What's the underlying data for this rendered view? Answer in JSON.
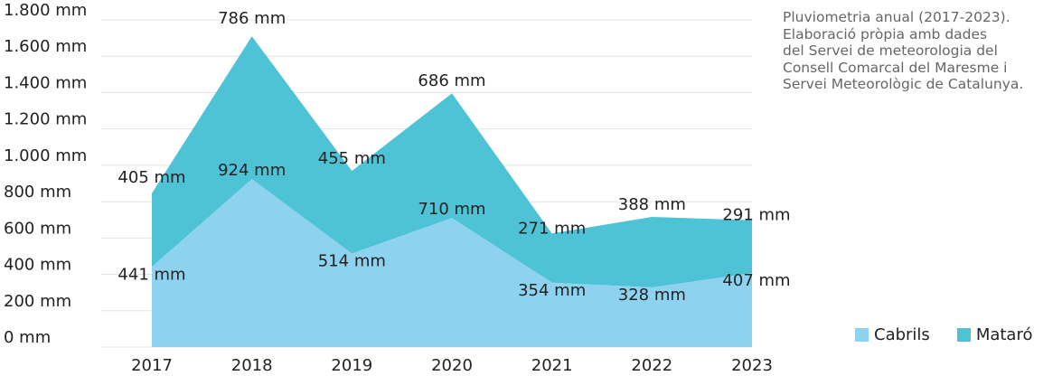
{
  "note": "Pluviometria anual (2017-2023).\nElaboració pròpia amb dades\ndel Servei de meteorologia del\nConsell Comarcal del Maresme i\nServei Meteorològic de Catalunya.",
  "chart_data": {
    "type": "area",
    "stacked": true,
    "unit": "mm",
    "x": [
      "2017",
      "2018",
      "2019",
      "2020",
      "2021",
      "2022",
      "2023"
    ],
    "ylim": [
      0,
      1800
    ],
    "yticks": [
      "0 mm",
      "200 mm",
      "400 mm",
      "600 mm",
      "800 mm",
      "1.000 mm",
      "1.200 mm",
      "1.400 mm",
      "1.600 mm",
      "1.800 mm"
    ],
    "grid": true,
    "legend_position": "bottom-right",
    "series": [
      {
        "name": "Cabrils",
        "color": "#8dd3f0",
        "values": [
          441,
          924,
          514,
          710,
          354,
          328,
          407
        ],
        "labels": [
          "441 mm",
          "924 mm",
          "514 mm",
          "710 mm",
          "354 mm",
          "328 mm",
          "407 mm"
        ]
      },
      {
        "name": "Mataró",
        "color": "#4fc3d6",
        "values": [
          405,
          786,
          455,
          686,
          271,
          388,
          291
        ],
        "labels": [
          "405 mm",
          "786 mm",
          "455 mm",
          "686 mm",
          "271 mm",
          "388 mm",
          "291 mm"
        ]
      }
    ]
  }
}
